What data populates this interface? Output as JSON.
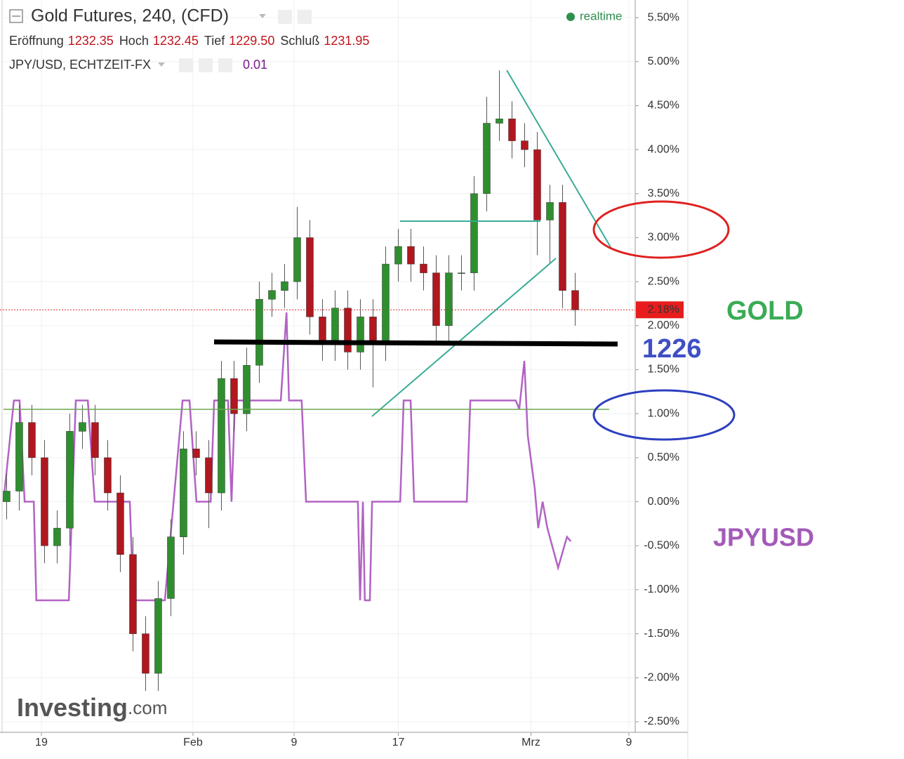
{
  "chart_data": {
    "type": "candlestick",
    "title": "Gold Futures, 240, (CFD)",
    "status": "realtime",
    "ohlc_info": [
      {
        "label": "Eröffnung",
        "value": "1232.35"
      },
      {
        "label": "Hoch",
        "value": "1232.45"
      },
      {
        "label": "Tief",
        "value": "1229.50"
      },
      {
        "label": "Schluß",
        "value": "1231.95"
      }
    ],
    "overlay_value": "0.01",
    "up_color": "#2f8f2f",
    "down_color": "#b0171f",
    "x": [
      1,
      5,
      9,
      13,
      17,
      21,
      25,
      29,
      33,
      37,
      41,
      45,
      49,
      53,
      57,
      61,
      65,
      69,
      73,
      77,
      81,
      85,
      89,
      93,
      97,
      101,
      105,
      109,
      113,
      117,
      121,
      125,
      129,
      133,
      137,
      141,
      145,
      149,
      153,
      157,
      161,
      165,
      169,
      173,
      177,
      181
    ],
    "open": [
      0.0,
      0.12,
      0.9,
      0.5,
      -0.5,
      -0.3,
      0.8,
      0.9,
      0.5,
      0.1,
      -0.6,
      -1.5,
      -1.95,
      -1.1,
      -0.4,
      0.6,
      0.5,
      0.1,
      1.4,
      1.0,
      1.55,
      2.3,
      2.4,
      2.5,
      3.0,
      2.1,
      1.8,
      2.2,
      1.7,
      2.1,
      1.8,
      2.7,
      2.9,
      2.7,
      2.6,
      2.0,
      2.6,
      2.6,
      3.5,
      4.3,
      4.35,
      4.1,
      4.0,
      3.2,
      3.4,
      2.4
    ],
    "high": [
      0.32,
      1.1,
      1.1,
      0.7,
      -0.1,
      1.0,
      1.1,
      1.1,
      0.7,
      0.3,
      -0.4,
      -1.3,
      -0.9,
      -0.2,
      0.8,
      0.8,
      0.7,
      1.6,
      1.6,
      1.75,
      2.5,
      2.6,
      2.7,
      3.35,
      3.2,
      2.3,
      2.4,
      2.4,
      2.3,
      2.3,
      2.9,
      3.1,
      3.1,
      2.9,
      2.8,
      2.8,
      2.8,
      3.7,
      4.6,
      4.9,
      4.55,
      4.3,
      4.2,
      3.6,
      3.6,
      2.6
    ],
    "low": [
      -0.2,
      -0.1,
      0.3,
      -0.7,
      -0.7,
      -0.5,
      0.6,
      0.3,
      -0.1,
      -0.8,
      -1.7,
      -2.15,
      -2.15,
      -1.3,
      -0.6,
      0.3,
      -0.3,
      -0.1,
      0.8,
      0.8,
      1.35,
      2.1,
      2.2,
      2.3,
      1.9,
      1.6,
      1.6,
      1.5,
      1.5,
      1.3,
      1.6,
      2.5,
      2.5,
      2.4,
      1.8,
      1.8,
      2.4,
      2.4,
      3.3,
      4.1,
      3.9,
      3.8,
      2.8,
      2.7,
      2.2,
      2.0
    ],
    "close": [
      0.12,
      0.9,
      0.5,
      -0.5,
      -0.3,
      0.8,
      0.9,
      0.5,
      0.1,
      -0.6,
      -1.5,
      -1.95,
      -1.1,
      -0.4,
      0.6,
      0.5,
      0.1,
      1.4,
      1.0,
      1.55,
      2.3,
      2.4,
      2.5,
      3.0,
      2.1,
      1.8,
      2.2,
      1.7,
      2.1,
      1.8,
      2.7,
      2.9,
      2.7,
      2.6,
      2.0,
      2.6,
      2.6,
      3.5,
      4.3,
      4.35,
      4.1,
      4.0,
      3.2,
      3.4,
      2.4,
      2.18
    ],
    "series": [
      {
        "name": "JPY/USD, ECHTZEIT-FX",
        "color": "#b262c4",
        "x": [
          0,
          3.3,
          5.1,
          6.7,
          9.6,
          10.4,
          20.7,
          22.9,
          26.7,
          28.9,
          40,
          41.1,
          51.1,
          56.7,
          58.9,
          61.1,
          65.6,
          66.7,
          71.1,
          72.2,
          73.3,
          87.8,
          89.6,
          90.4,
          94.4,
          95.8,
          112.2,
          112.9,
          113.8,
          114.4,
          116,
          116.7,
          125.6,
          126.7,
          128.9,
          130,
          146.7,
          147.8,
          162.2,
          163.3,
          164.9,
          166,
          168.2,
          169.3,
          170.7,
          172.2,
          175.6,
          178.4,
          179.6
        ],
        "values": [
          0.0,
          1.15,
          1.15,
          0.0,
          0.0,
          -1.12,
          -1.12,
          1.15,
          1.15,
          0.0,
          0.0,
          -1.12,
          -1.12,
          1.15,
          1.15,
          0.0,
          0.0,
          1.15,
          1.15,
          0.0,
          1.15,
          1.15,
          2.15,
          1.15,
          1.15,
          0.0,
          0.0,
          -1.12,
          0.0,
          -1.12,
          -1.12,
          0.0,
          0.0,
          1.15,
          1.15,
          0.0,
          0.0,
          1.15,
          1.15,
          1.05,
          1.6,
          0.75,
          0.15,
          -0.3,
          0.0,
          -0.3,
          -0.75,
          -0.4,
          -0.45
        ]
      }
    ],
    "last_value": {
      "value": 2.18,
      "label": "2.18%"
    },
    "xlim": [
      -1.1,
      200
    ],
    "xticks": [
      {
        "value": 12,
        "label": "19"
      },
      {
        "value": 60,
        "label": "Feb"
      },
      {
        "value": 92,
        "label": "9"
      },
      {
        "value": 125,
        "label": "17"
      },
      {
        "value": 167,
        "label": "Mrz"
      },
      {
        "value": 198,
        "label": "9"
      }
    ],
    "ylim": [
      -2.62,
      5.7
    ],
    "yticks": [
      {
        "value": 5.5,
        "label": "5.50%"
      },
      {
        "value": 5.0,
        "label": "5.00%"
      },
      {
        "value": 4.5,
        "label": "4.50%"
      },
      {
        "value": 4.0,
        "label": "4.00%"
      },
      {
        "value": 3.5,
        "label": "3.50%"
      },
      {
        "value": 3.0,
        "label": "3.00%"
      },
      {
        "value": 2.5,
        "label": "2.50%"
      },
      {
        "value": 2.0,
        "label": "2.00%"
      },
      {
        "value": 1.5,
        "label": "1.50%"
      },
      {
        "value": 1.0,
        "label": "1.00%"
      },
      {
        "value": 0.5,
        "label": "0.50%"
      },
      {
        "value": 0.0,
        "label": "0.00%"
      },
      {
        "value": -0.5,
        "label": "-0.50%"
      },
      {
        "value": -1.0,
        "label": "-1.00%"
      },
      {
        "value": -1.5,
        "label": "-1.50%"
      },
      {
        "value": -2.0,
        "label": "-2.00%"
      },
      {
        "value": -2.5,
        "label": "-2.50%"
      }
    ],
    "grid": true,
    "annotations": [
      "GOLD",
      "1226",
      "JPYUSD"
    ],
    "watermark": [
      "Investing",
      ".com"
    ]
  }
}
